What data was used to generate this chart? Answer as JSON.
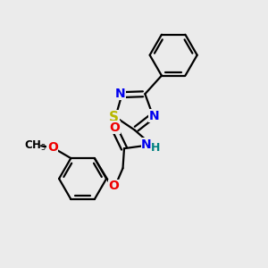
{
  "bg_color": "#ebebeb",
  "bond_color": "#000000",
  "S_color": "#b8b800",
  "N_color": "#0000ee",
  "O_color": "#ee0000",
  "H_color": "#008080",
  "line_width": 1.6,
  "font_size": 10,
  "fig_size": [
    3.0,
    3.0
  ],
  "dpi": 100,
  "xlim": [
    0,
    10
  ],
  "ylim": [
    0,
    10
  ]
}
